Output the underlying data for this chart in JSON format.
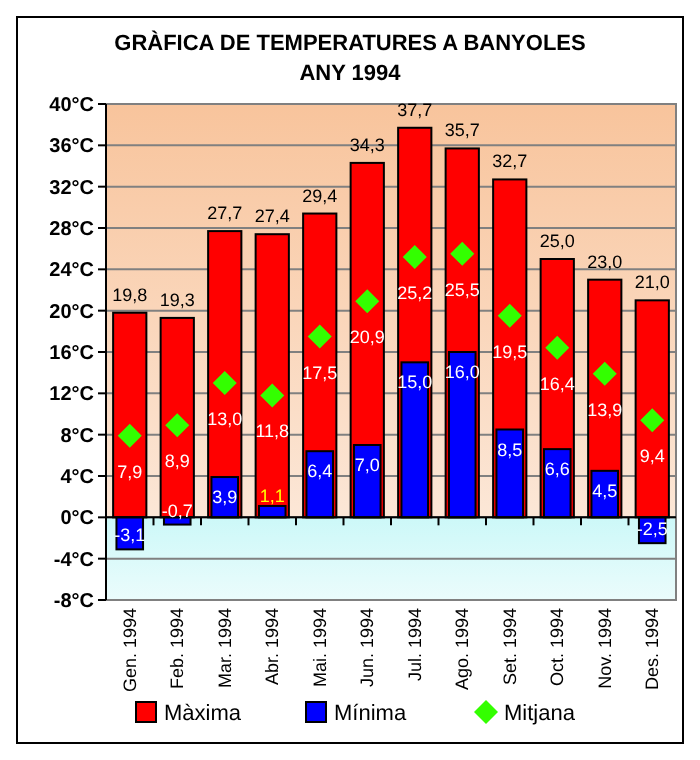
{
  "chart_data": {
    "type": "bar",
    "title": "GRÀFICA DE TEMPERATURES A BANYOLES",
    "subtitle": "ANY 1994",
    "categories": [
      "Gen. 1994",
      "Feb. 1994",
      "Mar. 1994",
      "Abr. 1994",
      "Mai. 1994",
      "Jun. 1994",
      "Jul. 1994",
      "Ago. 1994",
      "Set. 1994",
      "Oct. 1994",
      "Nov. 1994",
      "Des. 1994"
    ],
    "series": [
      {
        "name": "Màxima",
        "color": "#ff0000",
        "values": [
          19.8,
          19.3,
          27.7,
          27.4,
          29.4,
          34.3,
          37.7,
          35.7,
          32.7,
          25.0,
          23.0,
          21.0
        ],
        "value_labels": [
          "19,8",
          "19,3",
          "27,7",
          "27,4",
          "29,4",
          "34,3",
          "37,7",
          "35,7",
          "32,7",
          "25,0",
          "23,0",
          "21,0"
        ]
      },
      {
        "name": "Mínima",
        "color": "#0000ff",
        "values": [
          -3.1,
          -0.7,
          3.9,
          1.1,
          6.4,
          7.0,
          15.0,
          16.0,
          8.5,
          6.6,
          4.5,
          -2.5
        ],
        "value_labels": [
          "-3,1",
          "-0,7",
          "3,9",
          "1,1",
          "6,4",
          "7,0",
          "15,0",
          "16,0",
          "8,5",
          "6,6",
          "4,5",
          "-2,5"
        ]
      },
      {
        "name": "Mitjana",
        "type": "scatter",
        "color": "#33ff00",
        "marker": "diamond",
        "values": [
          7.9,
          8.9,
          13.0,
          11.8,
          17.5,
          20.9,
          25.2,
          25.5,
          19.5,
          16.4,
          13.9,
          9.4
        ],
        "value_labels": [
          "7,9",
          "8,9",
          "13,0",
          "11,8",
          "17,5",
          "20,9",
          "25,2",
          "25,5",
          "19,5",
          "16,4",
          "13,9",
          "9,4"
        ]
      }
    ],
    "ylim": [
      -8,
      40
    ],
    "yticks": [
      {
        "value": -8,
        "label": "-8°C"
      },
      {
        "value": -4,
        "label": "-4°C"
      },
      {
        "value": 0,
        "label": "0°C"
      },
      {
        "value": 4,
        "label": "4°C"
      },
      {
        "value": 8,
        "label": "8°C"
      },
      {
        "value": 12,
        "label": "12°C"
      },
      {
        "value": 16,
        "label": "16°C"
      },
      {
        "value": 20,
        "label": "20°C"
      },
      {
        "value": 24,
        "label": "24°C"
      },
      {
        "value": 28,
        "label": "28°C"
      },
      {
        "value": 32,
        "label": "32°C"
      },
      {
        "value": 36,
        "label": "36°C"
      },
      {
        "value": 40,
        "label": "40°C"
      }
    ],
    "bands": [
      {
        "axis": "y",
        "from": 0,
        "to": 40,
        "color": "#f8c49c"
      },
      {
        "axis": "y",
        "from": -8,
        "to": 0,
        "color": "#ccf8f8"
      }
    ],
    "grid": "y",
    "legend": "bottom"
  }
}
